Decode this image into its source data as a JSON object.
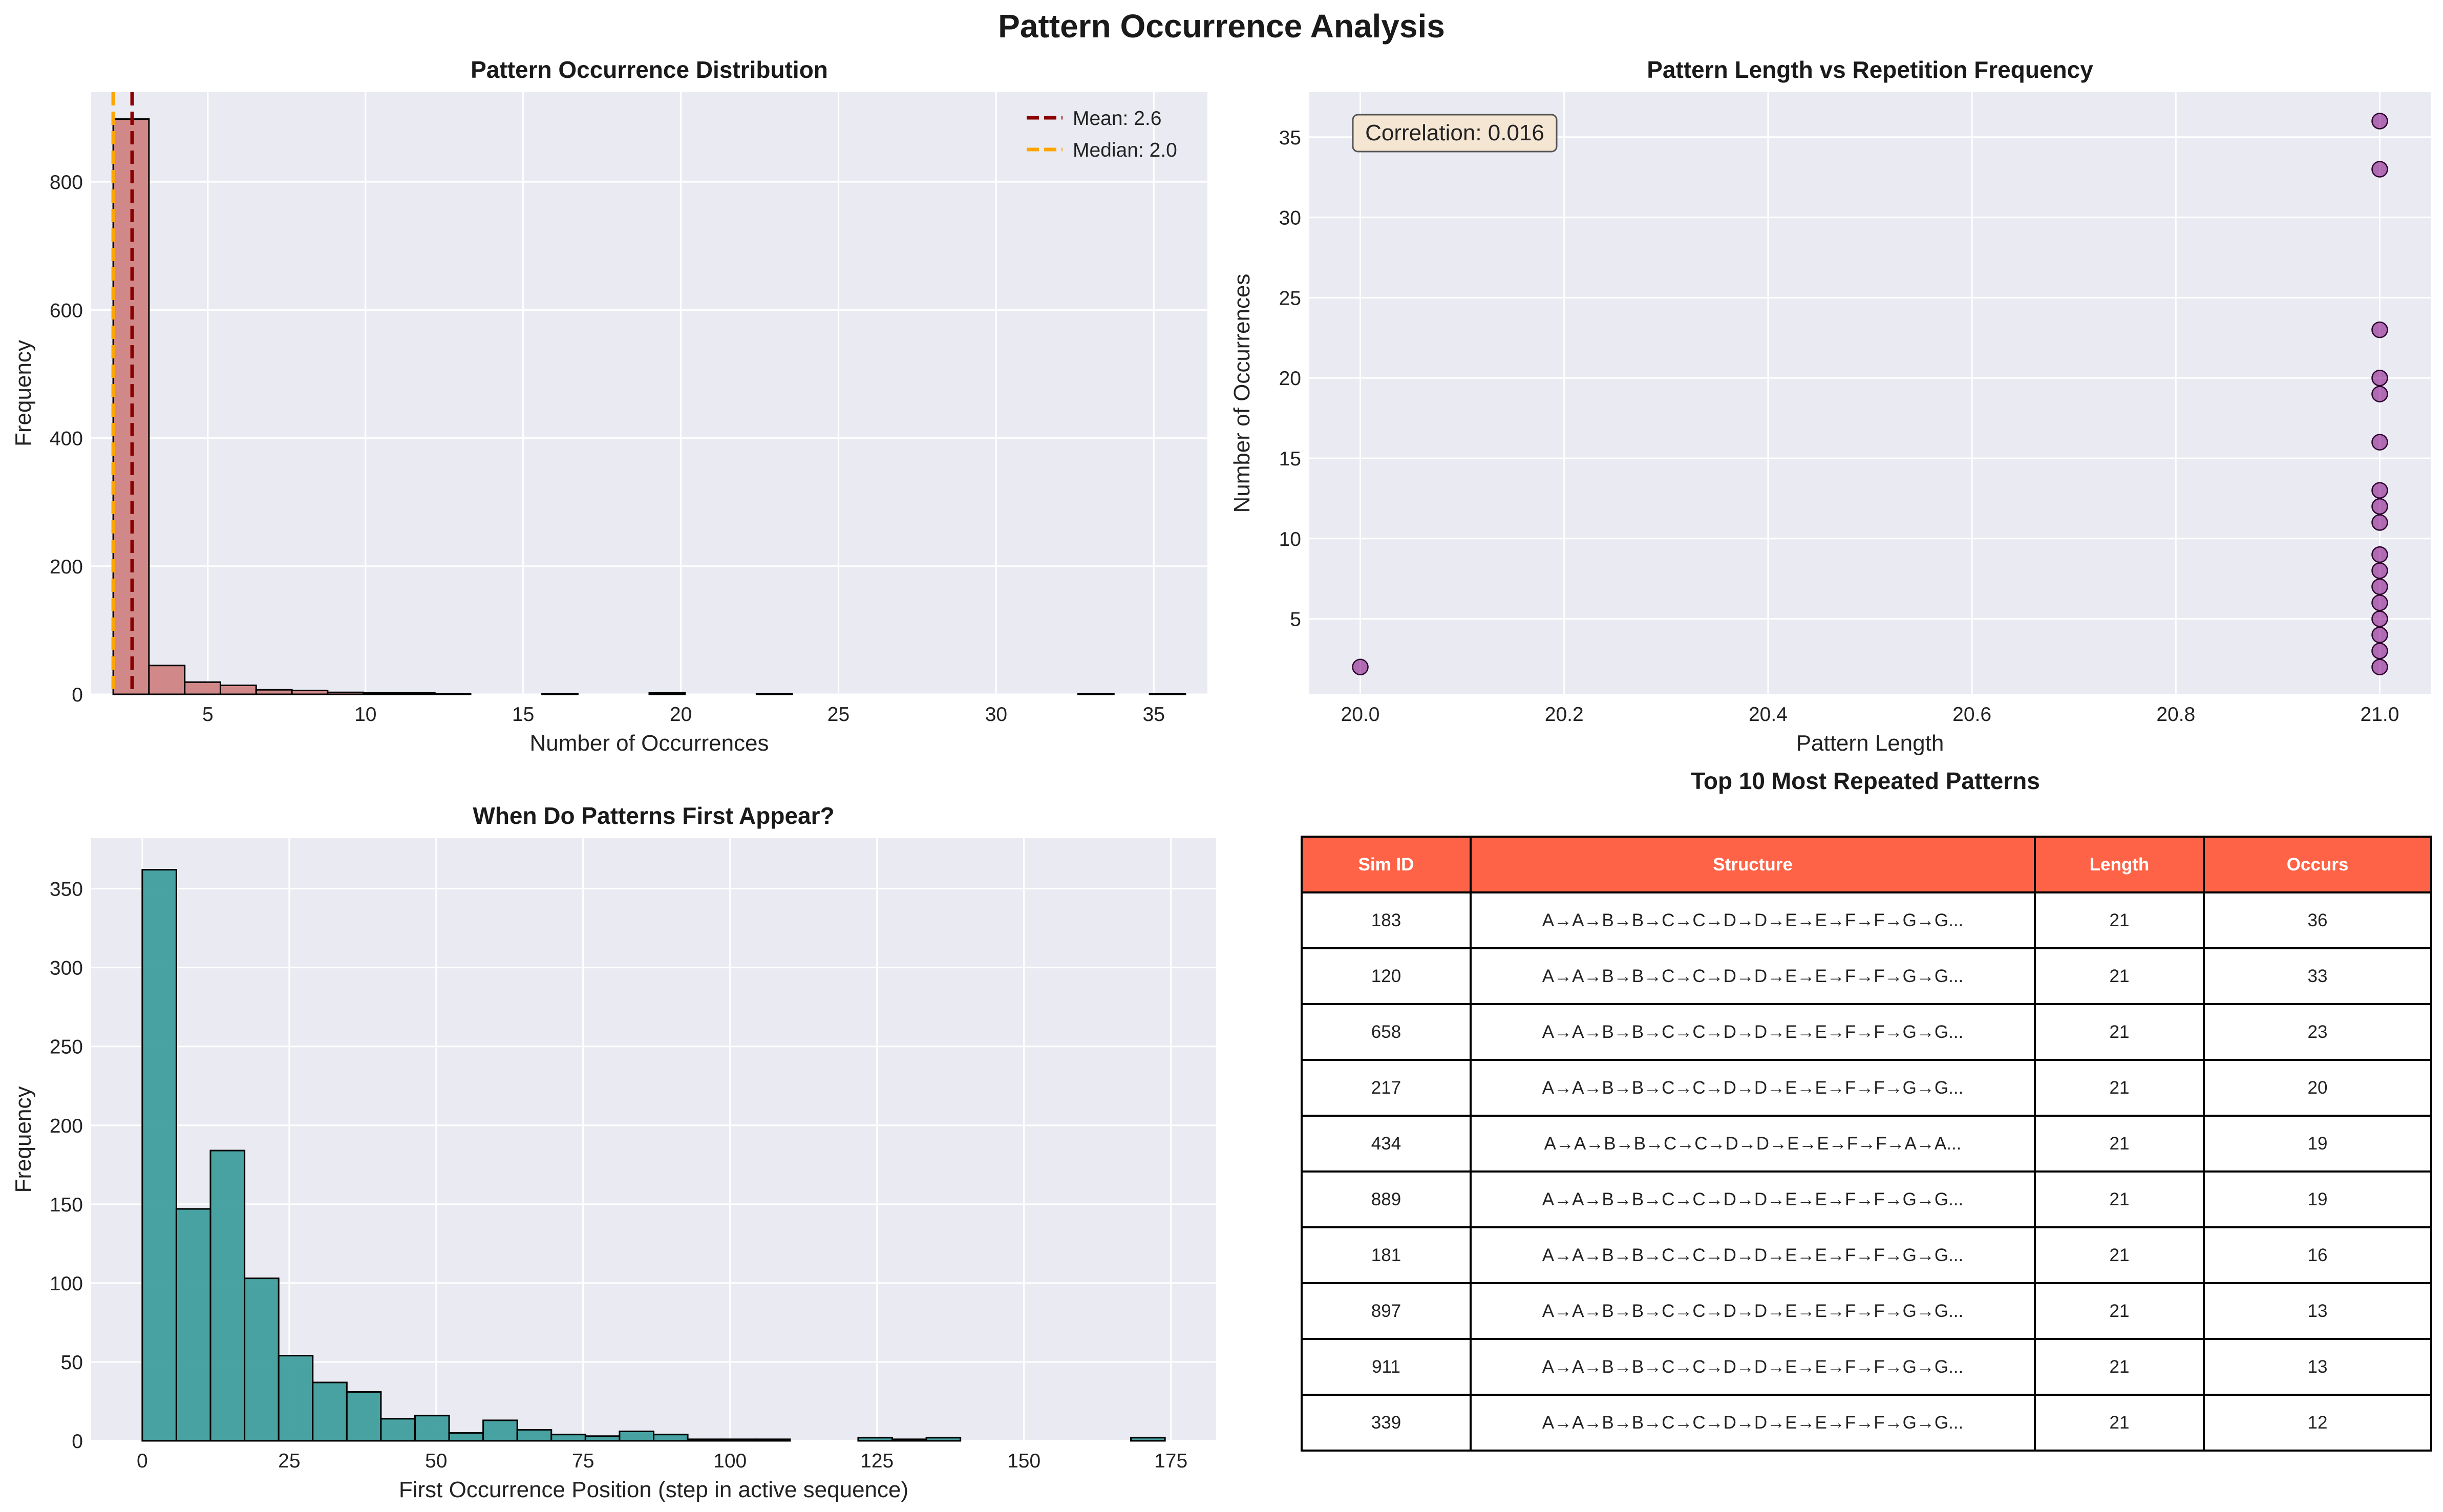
{
  "figure_title": "Pattern Occurrence Analysis",
  "colors": {
    "axes_bg": "#eaeaf2",
    "grid": "#ffffff",
    "hist1_fill": "#cd7f7f",
    "mean_line": "#8b0000",
    "median_line": "#ffa500",
    "hist2_fill": "#3a9b9b",
    "scatter": "#800080",
    "table_header": "#ff6347",
    "corr_box": "#f5e6d3"
  },
  "chart_data": [
    {
      "type": "bar",
      "title": "Pattern Occurrence Distribution",
      "xlabel": "Number of Occurrences",
      "ylabel": "Frequency",
      "xlim": [
        1.3,
        36.7
      ],
      "ylim": [
        0,
        940
      ],
      "xticks": [
        5,
        10,
        15,
        20,
        25,
        30,
        35
      ],
      "yticks": [
        0,
        200,
        400,
        600,
        800
      ],
      "bin_edges": [
        2,
        3.133,
        4.267,
        5.4,
        6.533,
        7.667,
        8.8,
        9.933,
        11.067,
        12.2,
        13.333,
        14.467,
        15.6,
        16.733,
        17.867,
        19,
        20.133,
        21.267,
        22.4,
        23.533,
        24.667,
        25.8,
        26.933,
        28.067,
        29.2,
        30.333,
        31.467,
        32.6,
        33.733,
        34.867,
        36
      ],
      "values": [
        898,
        45,
        19,
        14,
        7,
        6,
        3,
        2,
        2,
        1,
        0,
        0,
        1,
        0,
        0,
        2,
        0,
        0,
        1,
        0,
        0,
        0,
        0,
        0,
        0,
        0,
        0,
        1,
        0,
        1
      ],
      "lines": [
        {
          "name": "Mean: 2.6",
          "x": 2.6,
          "color": "#8b0000"
        },
        {
          "name": "Median: 2.0",
          "x": 2.0,
          "color": "#ffa500"
        }
      ],
      "legend": "top-right",
      "grid": true
    },
    {
      "type": "scatter",
      "title": "Pattern Length vs Repetition Frequency",
      "xlabel": "Pattern Length",
      "ylabel": "Number of Occurrences",
      "xlim": [
        19.95,
        21.05
      ],
      "ylim": [
        0.3,
        37.8
      ],
      "xticks": [
        20.0,
        20.2,
        20.4,
        20.6,
        20.8,
        21.0
      ],
      "yticks": [
        5,
        10,
        15,
        20,
        25,
        30,
        35
      ],
      "points": [
        {
          "x": 20,
          "y": 2
        },
        {
          "x": 21,
          "y": 2
        },
        {
          "x": 21,
          "y": 3
        },
        {
          "x": 21,
          "y": 4
        },
        {
          "x": 21,
          "y": 5
        },
        {
          "x": 21,
          "y": 6
        },
        {
          "x": 21,
          "y": 7
        },
        {
          "x": 21,
          "y": 8
        },
        {
          "x": 21,
          "y": 9
        },
        {
          "x": 21,
          "y": 11
        },
        {
          "x": 21,
          "y": 12
        },
        {
          "x": 21,
          "y": 13
        },
        {
          "x": 21,
          "y": 16
        },
        {
          "x": 21,
          "y": 19
        },
        {
          "x": 21,
          "y": 20
        },
        {
          "x": 21,
          "y": 23
        },
        {
          "x": 21,
          "y": 33
        },
        {
          "x": 21,
          "y": 36
        }
      ],
      "annotation": "Correlation: 0.016",
      "grid": true
    },
    {
      "type": "bar",
      "title": "When Do Patterns First Appear?",
      "xlabel": "First Occurrence Position (step in active sequence)",
      "ylabel": "Frequency",
      "xlim": [
        -8.7,
        182.7
      ],
      "ylim": [
        0,
        382
      ],
      "xticks": [
        0,
        25,
        50,
        75,
        100,
        125,
        150,
        175
      ],
      "yticks": [
        0,
        50,
        100,
        150,
        200,
        250,
        300,
        350
      ],
      "bin_edges": [
        0,
        5.8,
        11.6,
        17.4,
        23.2,
        29,
        34.8,
        40.6,
        46.4,
        52.2,
        58,
        63.8,
        69.6,
        75.4,
        81.2,
        87,
        92.8,
        98.6,
        104.4,
        110.2,
        116,
        121.8,
        127.6,
        133.4,
        139.2,
        145,
        150.8,
        156.6,
        162.4,
        168.2,
        174
      ],
      "values": [
        362,
        147,
        184,
        103,
        54,
        37,
        31,
        14,
        16,
        5,
        13,
        7,
        4,
        3,
        6,
        4,
        1,
        1,
        1,
        0,
        0,
        2,
        1,
        2,
        0,
        0,
        0,
        0,
        0,
        2
      ],
      "grid": true
    },
    {
      "type": "table",
      "title": "Top 10 Most Repeated Patterns",
      "columns": [
        "Sim ID",
        "Structure",
        "Length",
        "Occurs"
      ],
      "rows": [
        [
          "183",
          "A→A→B→B→C→C→D→D→E→E→F→F→G→G...",
          "21",
          "36"
        ],
        [
          "120",
          "A→A→B→B→C→C→D→D→E→E→F→F→G→G...",
          "21",
          "33"
        ],
        [
          "658",
          "A→A→B→B→C→C→D→D→E→E→F→F→G→G...",
          "21",
          "23"
        ],
        [
          "217",
          "A→A→B→B→C→C→D→D→E→E→F→F→G→G...",
          "21",
          "20"
        ],
        [
          "434",
          "A→A→B→B→C→C→D→D→E→E→F→F→A→A...",
          "21",
          "19"
        ],
        [
          "889",
          "A→A→B→B→C→C→D→D→E→E→F→F→G→G...",
          "21",
          "19"
        ],
        [
          "181",
          "A→A→B→B→C→C→D→D→E→E→F→F→G→G...",
          "21",
          "16"
        ],
        [
          "897",
          "A→A→B→B→C→C→D→D→E→E→F→F→G→G...",
          "21",
          "13"
        ],
        [
          "911",
          "A→A→B→B→C→C→D→D→E→E→F→F→G→G...",
          "21",
          "13"
        ],
        [
          "339",
          "A→A→B→B→C→C→D→D→E→E→F→F→G→G...",
          "21",
          "12"
        ]
      ]
    }
  ]
}
